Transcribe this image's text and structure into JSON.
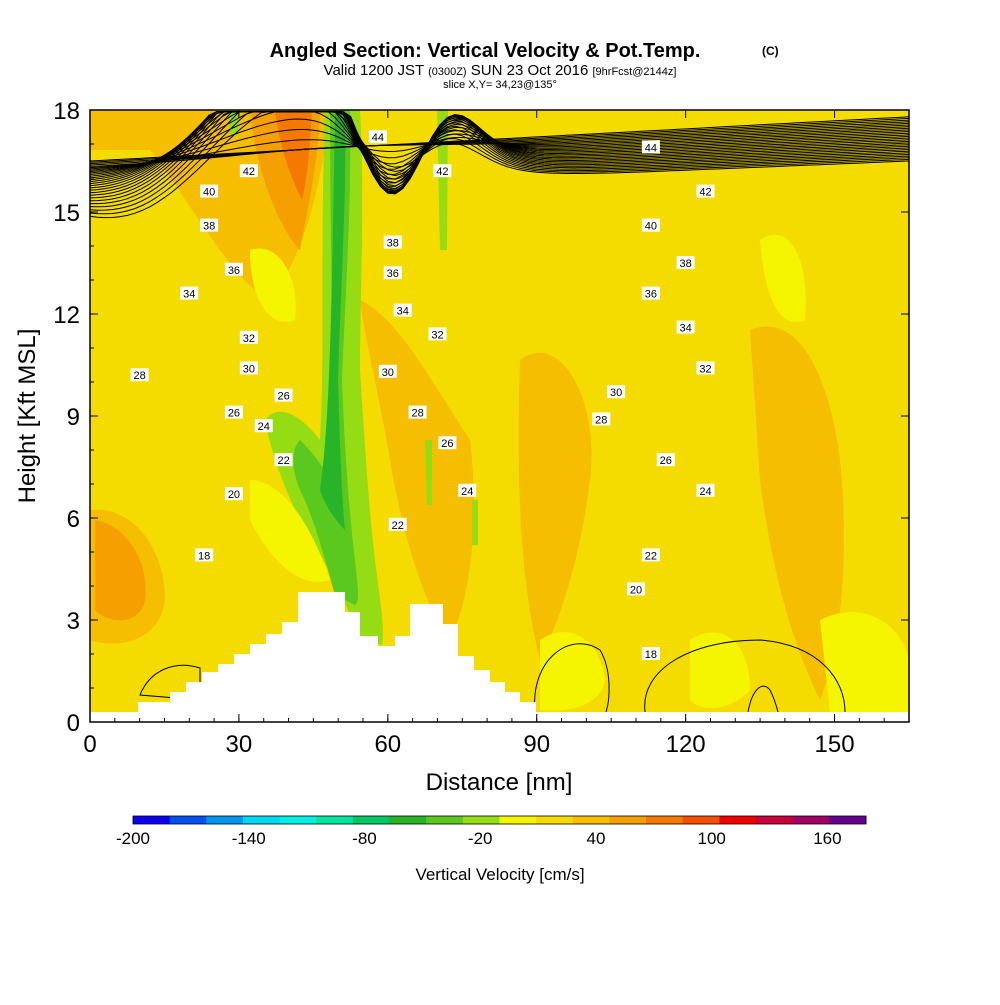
{
  "title": "Angled Section: Vertical Velocity & Pot.Temp.",
  "title_mark": "(C)",
  "subtitle": {
    "part1": "Valid 1200 JST",
    "part2": "(0300Z)",
    "part3": "SUN 23 Oct 2016",
    "part4": "[9hrFcst@2144z]"
  },
  "slice_info": "slice X,Y= 34,23@135°",
  "colorbar": {
    "title": "Vertical Velocity [cm/s]",
    "tick_labels": [
      "-200",
      "-140",
      "-80",
      "-20",
      "40",
      "100",
      "160"
    ],
    "colors": [
      "#0b00f0",
      "#0050f0",
      "#0096f0",
      "#00d8f0",
      "#00f0e6",
      "#00e6a0",
      "#00c864",
      "#28b428",
      "#5ac81e",
      "#96dc14",
      "#f5f500",
      "#f5dc00",
      "#f5be00",
      "#f5a000",
      "#f57800",
      "#f55000",
      "#f00000",
      "#c8003c",
      "#a00064",
      "#64008c"
    ]
  },
  "chart_data": {
    "type": "heatmap",
    "title": "Angled Section: Vertical Velocity & Pot.Temp.",
    "xlabel": "Distance [nm]",
    "ylabel": "Height [Kft MSL]",
    "xlim": [
      0,
      165
    ],
    "ylim": [
      0,
      18
    ],
    "x_ticks": [
      0,
      30,
      60,
      90,
      120,
      150
    ],
    "y_ticks": [
      0,
      3,
      6,
      9,
      12,
      15,
      18
    ],
    "variable": "Vertical Velocity [cm/s]",
    "color_range": [
      -200,
      180
    ],
    "contour_variable": "Potential Temperature",
    "contour_levels": [
      18,
      20,
      22,
      24,
      26,
      28,
      30,
      32,
      34,
      36,
      38,
      40,
      42,
      44
    ],
    "contour_labels": [
      {
        "text": "44",
        "x": 58,
        "y": 17.2
      },
      {
        "text": "42",
        "x": 32,
        "y": 16.2
      },
      {
        "text": "42",
        "x": 71,
        "y": 16.2
      },
      {
        "text": "40",
        "x": 24,
        "y": 15.6
      },
      {
        "text": "38",
        "x": 24,
        "y": 14.6
      },
      {
        "text": "38",
        "x": 61,
        "y": 14.1
      },
      {
        "text": "36",
        "x": 29,
        "y": 13.3
      },
      {
        "text": "36",
        "x": 61,
        "y": 13.2
      },
      {
        "text": "34",
        "x": 20,
        "y": 12.6
      },
      {
        "text": "34",
        "x": 63,
        "y": 12.1
      },
      {
        "text": "32",
        "x": 32,
        "y": 11.3
      },
      {
        "text": "32",
        "x": 70,
        "y": 11.4
      },
      {
        "text": "30",
        "x": 32,
        "y": 10.4
      },
      {
        "text": "30",
        "x": 60,
        "y": 10.3
      },
      {
        "text": "28",
        "x": 10,
        "y": 10.2
      },
      {
        "text": "26",
        "x": 39,
        "y": 9.6
      },
      {
        "text": "28",
        "x": 66,
        "y": 9.1
      },
      {
        "text": "26",
        "x": 29,
        "y": 9.1
      },
      {
        "text": "24",
        "x": 35,
        "y": 8.7
      },
      {
        "text": "26",
        "x": 72,
        "y": 8.2
      },
      {
        "text": "22",
        "x": 39,
        "y": 7.7
      },
      {
        "text": "24",
        "x": 76,
        "y": 6.8
      },
      {
        "text": "20",
        "x": 29,
        "y": 6.7
      },
      {
        "text": "22",
        "x": 62,
        "y": 5.8
      },
      {
        "text": "18",
        "x": 23,
        "y": 4.9
      },
      {
        "text": "44",
        "x": 113,
        "y": 16.9
      },
      {
        "text": "42",
        "x": 124,
        "y": 15.6
      },
      {
        "text": "40",
        "x": 113,
        "y": 14.6
      },
      {
        "text": "38",
        "x": 120,
        "y": 13.5
      },
      {
        "text": "36",
        "x": 113,
        "y": 12.6
      },
      {
        "text": "34",
        "x": 120,
        "y": 11.6
      },
      {
        "text": "32",
        "x": 124,
        "y": 10.4
      },
      {
        "text": "30",
        "x": 106,
        "y": 9.7
      },
      {
        "text": "28",
        "x": 103,
        "y": 8.9
      },
      {
        "text": "26",
        "x": 116,
        "y": 7.7
      },
      {
        "text": "24",
        "x": 124,
        "y": 6.8
      },
      {
        "text": "22",
        "x": 113,
        "y": 4.9
      },
      {
        "text": "20",
        "x": 110,
        "y": 3.9
      },
      {
        "text": "18",
        "x": 113,
        "y": 2.0
      }
    ]
  }
}
